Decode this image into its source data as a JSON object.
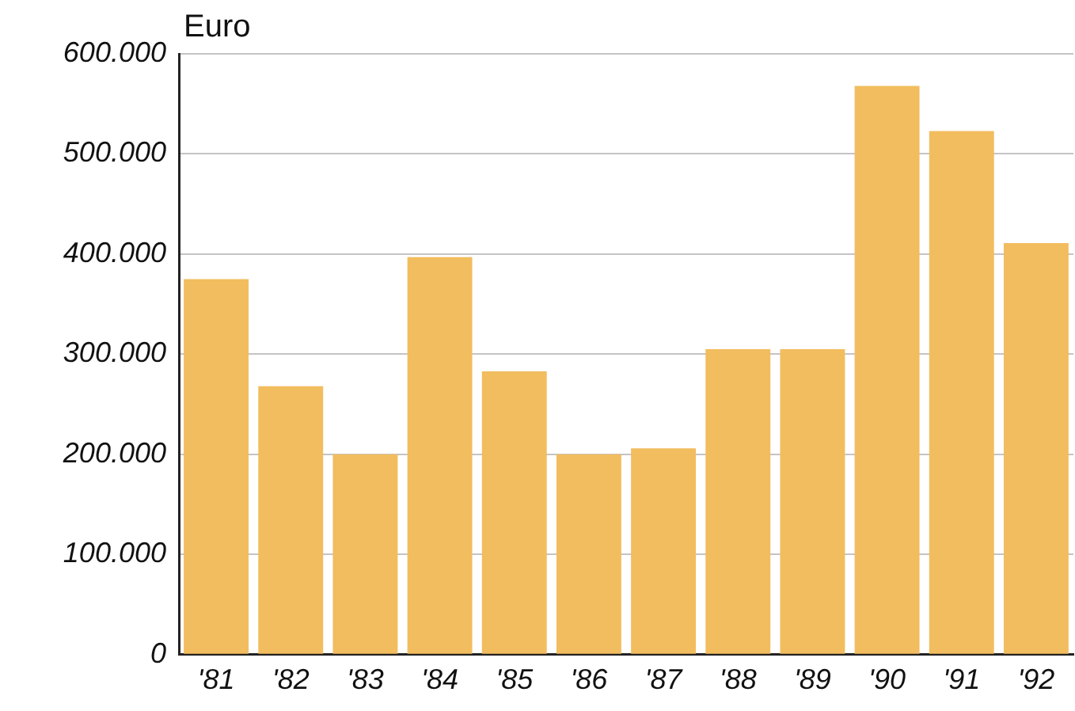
{
  "chart_data": {
    "type": "bar",
    "ylabel": "Euro",
    "categories": [
      "'81",
      "'82",
      "'83",
      "'84",
      "'85",
      "'86",
      "'87",
      "'88",
      "'89",
      "'90",
      "'91",
      "'92"
    ],
    "values": [
      375000,
      268000,
      200000,
      397000,
      283000,
      200000,
      206000,
      305000,
      305000,
      568000,
      523000,
      411000
    ],
    "color": "#f2bd5f",
    "ylim": [
      0,
      600000
    ],
    "yticks": [
      {
        "value": 0,
        "label": "0"
      },
      {
        "value": 100000,
        "label": "100.000"
      },
      {
        "value": 200000,
        "label": "200.000"
      },
      {
        "value": 300000,
        "label": "300.000"
      },
      {
        "value": 400000,
        "label": "400.000"
      },
      {
        "value": 500000,
        "label": "500.000"
      },
      {
        "value": 600000,
        "label": "600.000"
      }
    ],
    "grid": "y"
  }
}
